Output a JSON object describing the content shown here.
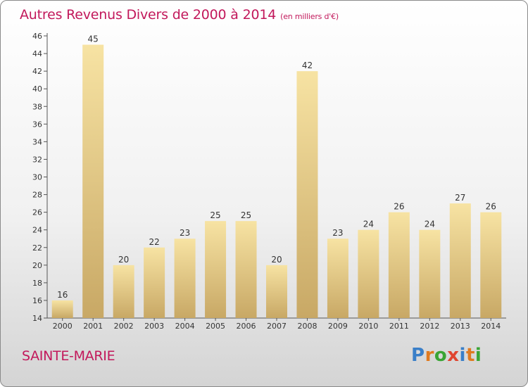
{
  "title": "Autres Revenus Divers de 2000 à 2014",
  "unit_note": "(en milliers d'€)",
  "commune": "SAINTE-MARIE",
  "logo_text": "Proxiti",
  "logo_colors": [
    "#3a7fc8",
    "#e07a1f",
    "#3aa535",
    "#e0452f",
    "#3a7fc8",
    "#e07a1f",
    "#3aa535"
  ],
  "colors": {
    "title": "#c2185b",
    "bar_light": "#f7e3a3",
    "bar_dark": "#c8a865",
    "axis": "#555555"
  },
  "chart_data": {
    "type": "bar",
    "title": "Autres Revenus Divers de 2000 à 2014",
    "xlabel": "",
    "ylabel": "",
    "categories": [
      "2000",
      "2001",
      "2002",
      "2003",
      "2004",
      "2005",
      "2006",
      "2007",
      "2008",
      "2009",
      "2010",
      "2011",
      "2012",
      "2013",
      "2014"
    ],
    "values": [
      16,
      45,
      20,
      22,
      23,
      25,
      25,
      20,
      42,
      23,
      24,
      26,
      24,
      27,
      26
    ],
    "ylim": [
      14,
      46
    ],
    "yticks": [
      14,
      16,
      18,
      20,
      22,
      24,
      26,
      28,
      30,
      32,
      34,
      36,
      38,
      40,
      42,
      44,
      46
    ],
    "grid": false,
    "data_labels": true
  }
}
